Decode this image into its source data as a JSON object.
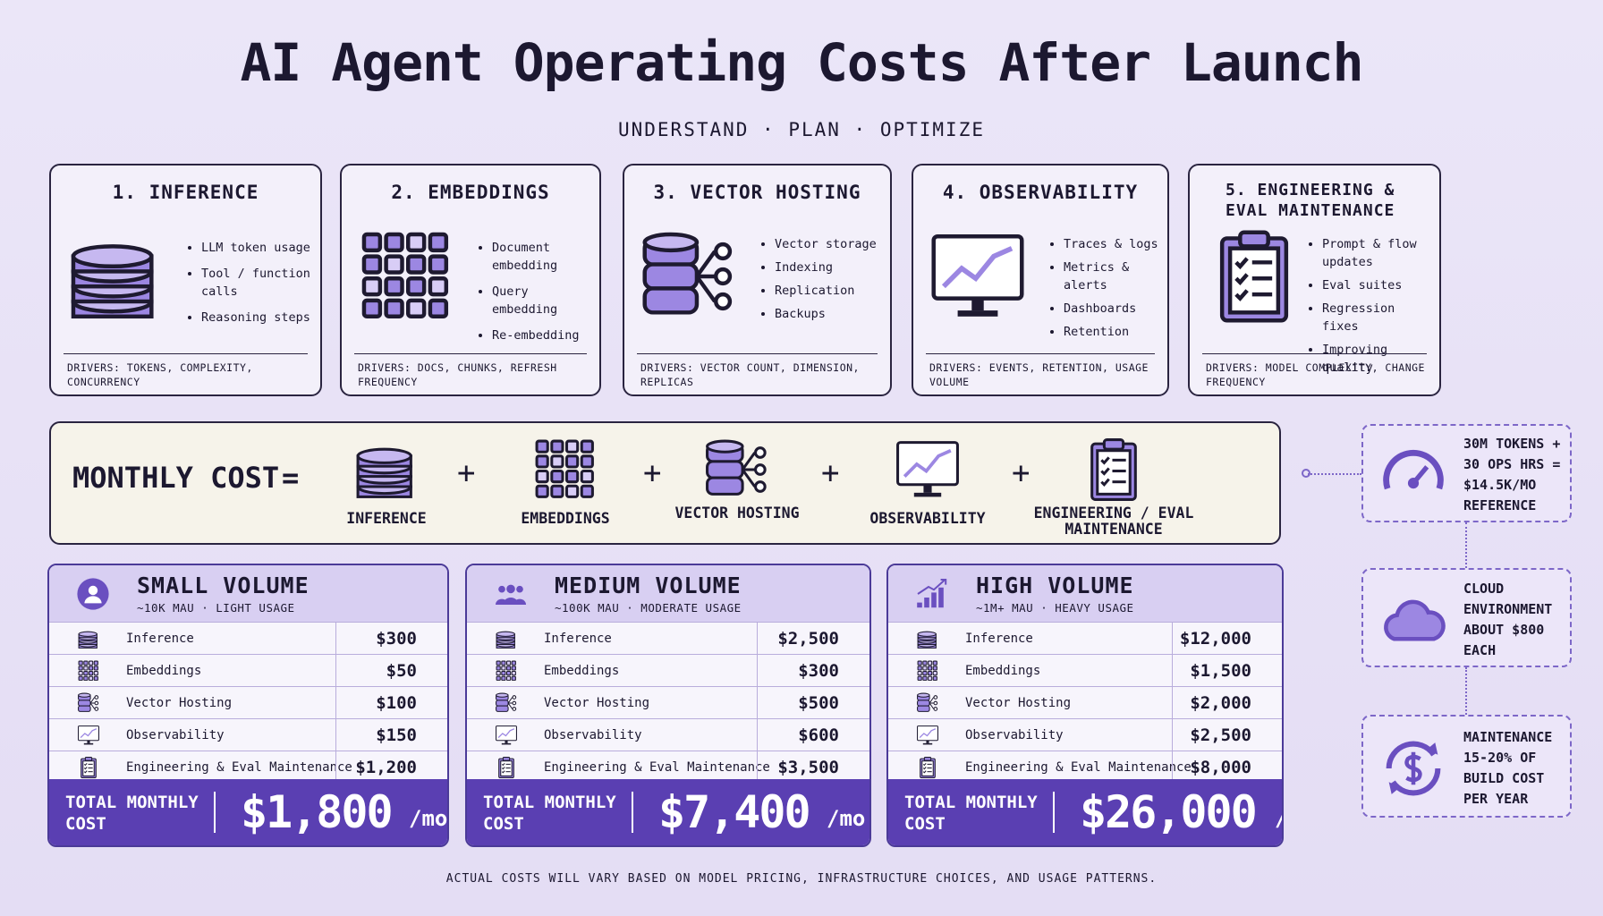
{
  "header": {
    "title": "AI Agent Operating Costs After Launch",
    "subtitle": "UNDERSTAND · PLAN · OPTIMIZE"
  },
  "cards": [
    {
      "title": "1. INFERENCE",
      "bullets": [
        "LLM token usage",
        "Tool / function calls",
        "Reasoning steps"
      ],
      "drivers": "DRIVERS: TOKENS, COMPLEXITY, CONCURRENCY"
    },
    {
      "title": "2. EMBEDDINGS",
      "bullets": [
        "Document embedding",
        "Query embedding",
        "Re-embedding"
      ],
      "drivers": "DRIVERS: DOCS, CHUNKS, REFRESH FREQUENCY"
    },
    {
      "title": "3. VECTOR HOSTING",
      "bullets": [
        "Vector storage",
        "Indexing",
        "Replication",
        "Backups"
      ],
      "drivers": "DRIVERS: VECTOR COUNT, DIMENSION, REPLICAS"
    },
    {
      "title": "4. OBSERVABILITY",
      "bullets": [
        "Traces & logs",
        "Metrics & alerts",
        "Dashboards",
        "Retention"
      ],
      "drivers": "DRIVERS: EVENTS, RETENTION, USAGE VOLUME"
    },
    {
      "title": "5. ENGINEERING & EVAL MAINTENANCE",
      "bullets": [
        "Prompt & flow updates",
        "Eval suites",
        "Regression fixes",
        "Improving quality"
      ],
      "drivers": "DRIVERS: MODEL COMPLEXITY, CHANGE FREQUENCY"
    }
  ],
  "equation": {
    "label": "MONTHLY COST",
    "equals": "=",
    "plus": "+",
    "items": [
      "INFERENCE",
      "EMBEDDINGS",
      "VECTOR HOSTING",
      "OBSERVABILITY",
      "ENGINEERING / EVAL MAINTENANCE"
    ]
  },
  "tiers": [
    {
      "name": "SMALL VOLUME",
      "subtitle": "~10K MAU · LIGHT USAGE",
      "rows": [
        [
          "Inference",
          "$300"
        ],
        [
          "Embeddings",
          "$50"
        ],
        [
          "Vector Hosting",
          "$100"
        ],
        [
          "Observability",
          "$150"
        ],
        [
          "Engineering & Eval Maintenance",
          "$1,200"
        ]
      ],
      "total_label": "TOTAL MONTHLY COST",
      "total": "$1,800",
      "unit": "/mo"
    },
    {
      "name": "MEDIUM VOLUME",
      "subtitle": "~100K MAU · MODERATE USAGE",
      "rows": [
        [
          "Inference",
          "$2,500"
        ],
        [
          "Embeddings",
          "$300"
        ],
        [
          "Vector Hosting",
          "$500"
        ],
        [
          "Observability",
          "$600"
        ],
        [
          "Engineering & Eval Maintenance",
          "$3,500"
        ]
      ],
      "total_label": "TOTAL MONTHLY COST",
      "total": "$7,400",
      "unit": "/mo"
    },
    {
      "name": "HIGH VOLUME",
      "subtitle": "~1M+ MAU · HEAVY USAGE",
      "rows": [
        [
          "Inference",
          "$12,000"
        ],
        [
          "Embeddings",
          "$1,500"
        ],
        [
          "Vector Hosting",
          "$2,000"
        ],
        [
          "Observability",
          "$2,500"
        ],
        [
          "Engineering & Eval Maintenance",
          "$8,000"
        ]
      ],
      "total_label": "TOTAL MONTHLY COST",
      "total": "$26,000",
      "unit": "/mo"
    }
  ],
  "notes": [
    "30M TOKENS + 30 OPS HRS = $14.5K/MO REFERENCE",
    "CLOUD ENVIRONMENT ABOUT $800 EACH",
    "MAINTENANCE 15-20% OF BUILD COST PER YEAR"
  ],
  "footer": "ACTUAL COSTS WILL VARY BASED ON MODEL PRICING, INFRASTRUCTURE CHOICES, AND USAGE PATTERNS."
}
